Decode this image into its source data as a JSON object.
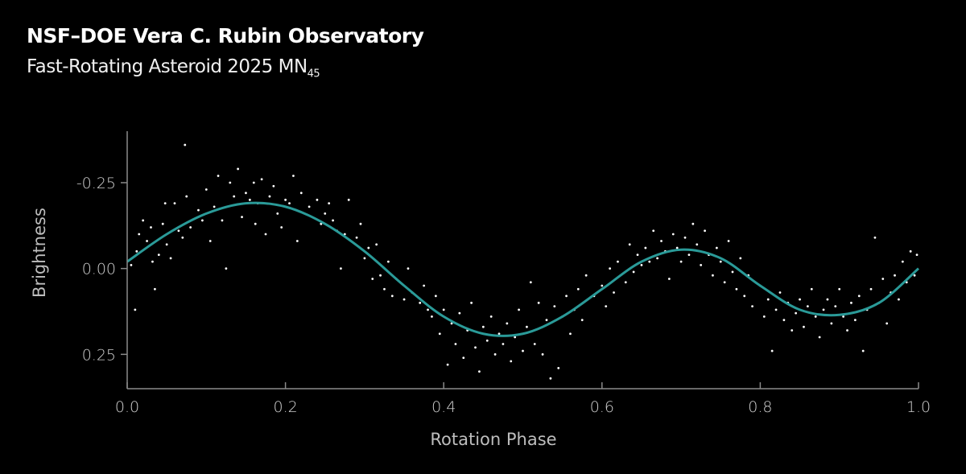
{
  "header": {
    "title": "NSF–DOE Vera C. Rubin Observatory",
    "subtitle_main": "Fast-Rotating Asteroid 2025 MN",
    "subtitle_sub": "45"
  },
  "chart_data": {
    "type": "scatter",
    "title": "NSF–DOE Vera C. Rubin Observatory",
    "subtitle": "Fast-Rotating Asteroid 2025 MN45",
    "xlabel": "Rotation Phase",
    "ylabel": "Brightness",
    "xlim": [
      0.0,
      1.0
    ],
    "ylim": [
      -0.4,
      0.35
    ],
    "y_inverted": true,
    "grid": false,
    "xticks": [
      "0.0",
      "0.2",
      "0.4",
      "0.6",
      "0.8",
      "1.0"
    ],
    "xtick_values": [
      0.0,
      0.2,
      0.4,
      0.6,
      0.8,
      1.0
    ],
    "yticks": [
      "-0.25",
      "0.00",
      "0.25"
    ],
    "ytick_values": [
      -0.25,
      0.0,
      0.25
    ],
    "colors": {
      "background": "#000000",
      "points": "#ffffff",
      "fit_line": "#2a9a98",
      "axes": "#8a8a8a"
    },
    "fit_curve": [
      [
        0.0,
        -0.02
      ],
      [
        0.05,
        -0.1
      ],
      [
        0.1,
        -0.16
      ],
      [
        0.15,
        -0.19
      ],
      [
        0.2,
        -0.18
      ],
      [
        0.25,
        -0.13
      ],
      [
        0.3,
        -0.05
      ],
      [
        0.35,
        0.05
      ],
      [
        0.4,
        0.14
      ],
      [
        0.45,
        0.19
      ],
      [
        0.5,
        0.19
      ],
      [
        0.55,
        0.14
      ],
      [
        0.6,
        0.06
      ],
      [
        0.65,
        -0.02
      ],
      [
        0.7,
        -0.055
      ],
      [
        0.75,
        -0.03
      ],
      [
        0.8,
        0.05
      ],
      [
        0.85,
        0.12
      ],
      [
        0.9,
        0.135
      ],
      [
        0.95,
        0.1
      ],
      [
        1.0,
        0.0
      ]
    ],
    "points": [
      [
        0.005,
        -0.01
      ],
      [
        0.01,
        0.12
      ],
      [
        0.012,
        -0.05
      ],
      [
        0.015,
        -0.1
      ],
      [
        0.02,
        -0.14
      ],
      [
        0.025,
        -0.08
      ],
      [
        0.03,
        -0.12
      ],
      [
        0.032,
        -0.02
      ],
      [
        0.035,
        0.06
      ],
      [
        0.04,
        -0.04
      ],
      [
        0.045,
        -0.13
      ],
      [
        0.048,
        -0.19
      ],
      [
        0.05,
        -0.07
      ],
      [
        0.055,
        -0.03
      ],
      [
        0.06,
        -0.19
      ],
      [
        0.065,
        -0.11
      ],
      [
        0.07,
        -0.09
      ],
      [
        0.073,
        -0.36
      ],
      [
        0.075,
        -0.21
      ],
      [
        0.08,
        -0.12
      ],
      [
        0.09,
        -0.17
      ],
      [
        0.095,
        -0.14
      ],
      [
        0.1,
        -0.23
      ],
      [
        0.105,
        -0.08
      ],
      [
        0.11,
        -0.18
      ],
      [
        0.115,
        -0.27
      ],
      [
        0.12,
        -0.14
      ],
      [
        0.125,
        0.0
      ],
      [
        0.13,
        -0.25
      ],
      [
        0.135,
        -0.21
      ],
      [
        0.14,
        -0.29
      ],
      [
        0.145,
        -0.15
      ],
      [
        0.15,
        -0.22
      ],
      [
        0.155,
        -0.2
      ],
      [
        0.16,
        -0.25
      ],
      [
        0.162,
        -0.13
      ],
      [
        0.165,
        -0.19
      ],
      [
        0.17,
        -0.26
      ],
      [
        0.175,
        -0.1
      ],
      [
        0.18,
        -0.21
      ],
      [
        0.185,
        -0.24
      ],
      [
        0.19,
        -0.16
      ],
      [
        0.195,
        -0.12
      ],
      [
        0.2,
        -0.2
      ],
      [
        0.205,
        -0.19
      ],
      [
        0.21,
        -0.27
      ],
      [
        0.215,
        -0.08
      ],
      [
        0.22,
        -0.22
      ],
      [
        0.23,
        -0.18
      ],
      [
        0.24,
        -0.2
      ],
      [
        0.245,
        -0.13
      ],
      [
        0.25,
        -0.16
      ],
      [
        0.255,
        -0.19
      ],
      [
        0.26,
        -0.14
      ],
      [
        0.265,
        -0.11
      ],
      [
        0.27,
        0.0
      ],
      [
        0.275,
        -0.1
      ],
      [
        0.28,
        -0.2
      ],
      [
        0.29,
        -0.09
      ],
      [
        0.295,
        -0.13
      ],
      [
        0.3,
        -0.03
      ],
      [
        0.305,
        -0.06
      ],
      [
        0.31,
        0.03
      ],
      [
        0.315,
        -0.07
      ],
      [
        0.32,
        0.02
      ],
      [
        0.325,
        0.06
      ],
      [
        0.33,
        -0.02
      ],
      [
        0.335,
        0.08
      ],
      [
        0.34,
        0.03
      ],
      [
        0.35,
        0.09
      ],
      [
        0.355,
        0.0
      ],
      [
        0.36,
        0.07
      ],
      [
        0.37,
        0.1
      ],
      [
        0.375,
        0.05
      ],
      [
        0.38,
        0.12
      ],
      [
        0.385,
        0.14
      ],
      [
        0.39,
        0.08
      ],
      [
        0.395,
        0.19
      ],
      [
        0.4,
        0.12
      ],
      [
        0.405,
        0.28
      ],
      [
        0.41,
        0.16
      ],
      [
        0.415,
        0.22
      ],
      [
        0.42,
        0.13
      ],
      [
        0.425,
        0.26
      ],
      [
        0.43,
        0.18
      ],
      [
        0.435,
        0.1
      ],
      [
        0.44,
        0.23
      ],
      [
        0.445,
        0.3
      ],
      [
        0.45,
        0.17
      ],
      [
        0.455,
        0.21
      ],
      [
        0.46,
        0.14
      ],
      [
        0.465,
        0.25
      ],
      [
        0.47,
        0.19
      ],
      [
        0.475,
        0.22
      ],
      [
        0.48,
        0.16
      ],
      [
        0.485,
        0.27
      ],
      [
        0.49,
        0.2
      ],
      [
        0.495,
        0.12
      ],
      [
        0.5,
        0.24
      ],
      [
        0.505,
        0.17
      ],
      [
        0.51,
        0.04
      ],
      [
        0.515,
        0.22
      ],
      [
        0.52,
        0.1
      ],
      [
        0.525,
        0.25
      ],
      [
        0.53,
        0.15
      ],
      [
        0.535,
        0.32
      ],
      [
        0.54,
        0.11
      ],
      [
        0.545,
        0.29
      ],
      [
        0.55,
        0.14
      ],
      [
        0.555,
        0.08
      ],
      [
        0.56,
        0.19
      ],
      [
        0.565,
        0.12
      ],
      [
        0.57,
        0.06
      ],
      [
        0.575,
        0.15
      ],
      [
        0.58,
        0.02
      ],
      [
        0.59,
        0.08
      ],
      [
        0.6,
        0.05
      ],
      [
        0.605,
        0.11
      ],
      [
        0.61,
        0.0
      ],
      [
        0.615,
        0.07
      ],
      [
        0.62,
        -0.02
      ],
      [
        0.63,
        0.04
      ],
      [
        0.635,
        -0.07
      ],
      [
        0.64,
        0.01
      ],
      [
        0.645,
        -0.04
      ],
      [
        0.65,
        -0.01
      ],
      [
        0.655,
        -0.06
      ],
      [
        0.66,
        -0.02
      ],
      [
        0.665,
        -0.11
      ],
      [
        0.67,
        -0.03
      ],
      [
        0.675,
        -0.08
      ],
      [
        0.68,
        -0.05
      ],
      [
        0.685,
        0.03
      ],
      [
        0.69,
        -0.1
      ],
      [
        0.695,
        -0.06
      ],
      [
        0.7,
        -0.02
      ],
      [
        0.705,
        -0.09
      ],
      [
        0.71,
        -0.04
      ],
      [
        0.715,
        -0.13
      ],
      [
        0.72,
        -0.07
      ],
      [
        0.725,
        -0.01
      ],
      [
        0.73,
        -0.11
      ],
      [
        0.735,
        -0.04
      ],
      [
        0.74,
        0.02
      ],
      [
        0.745,
        -0.06
      ],
      [
        0.75,
        -0.02
      ],
      [
        0.755,
        0.04
      ],
      [
        0.76,
        -0.08
      ],
      [
        0.765,
        0.01
      ],
      [
        0.77,
        0.06
      ],
      [
        0.775,
        -0.03
      ],
      [
        0.78,
        0.08
      ],
      [
        0.785,
        0.02
      ],
      [
        0.79,
        0.11
      ],
      [
        0.8,
        0.05
      ],
      [
        0.805,
        0.14
      ],
      [
        0.81,
        0.09
      ],
      [
        0.815,
        0.24
      ],
      [
        0.82,
        0.12
      ],
      [
        0.825,
        0.07
      ],
      [
        0.83,
        0.15
      ],
      [
        0.835,
        0.1
      ],
      [
        0.84,
        0.18
      ],
      [
        0.845,
        0.13
      ],
      [
        0.85,
        0.09
      ],
      [
        0.855,
        0.17
      ],
      [
        0.86,
        0.11
      ],
      [
        0.865,
        0.06
      ],
      [
        0.87,
        0.14
      ],
      [
        0.875,
        0.2
      ],
      [
        0.88,
        0.12
      ],
      [
        0.885,
        0.09
      ],
      [
        0.89,
        0.16
      ],
      [
        0.895,
        0.11
      ],
      [
        0.9,
        0.06
      ],
      [
        0.905,
        0.14
      ],
      [
        0.91,
        0.18
      ],
      [
        0.915,
        0.1
      ],
      [
        0.92,
        0.15
      ],
      [
        0.925,
        0.08
      ],
      [
        0.93,
        0.24
      ],
      [
        0.935,
        0.12
      ],
      [
        0.94,
        0.06
      ],
      [
        0.945,
        -0.09
      ],
      [
        0.95,
        0.1
      ],
      [
        0.955,
        0.03
      ],
      [
        0.96,
        0.16
      ],
      [
        0.965,
        0.07
      ],
      [
        0.97,
        0.02
      ],
      [
        0.975,
        0.09
      ],
      [
        0.98,
        -0.02
      ],
      [
        0.985,
        0.04
      ],
      [
        0.99,
        -0.05
      ],
      [
        0.995,
        0.02
      ],
      [
        0.998,
        -0.04
      ]
    ]
  }
}
